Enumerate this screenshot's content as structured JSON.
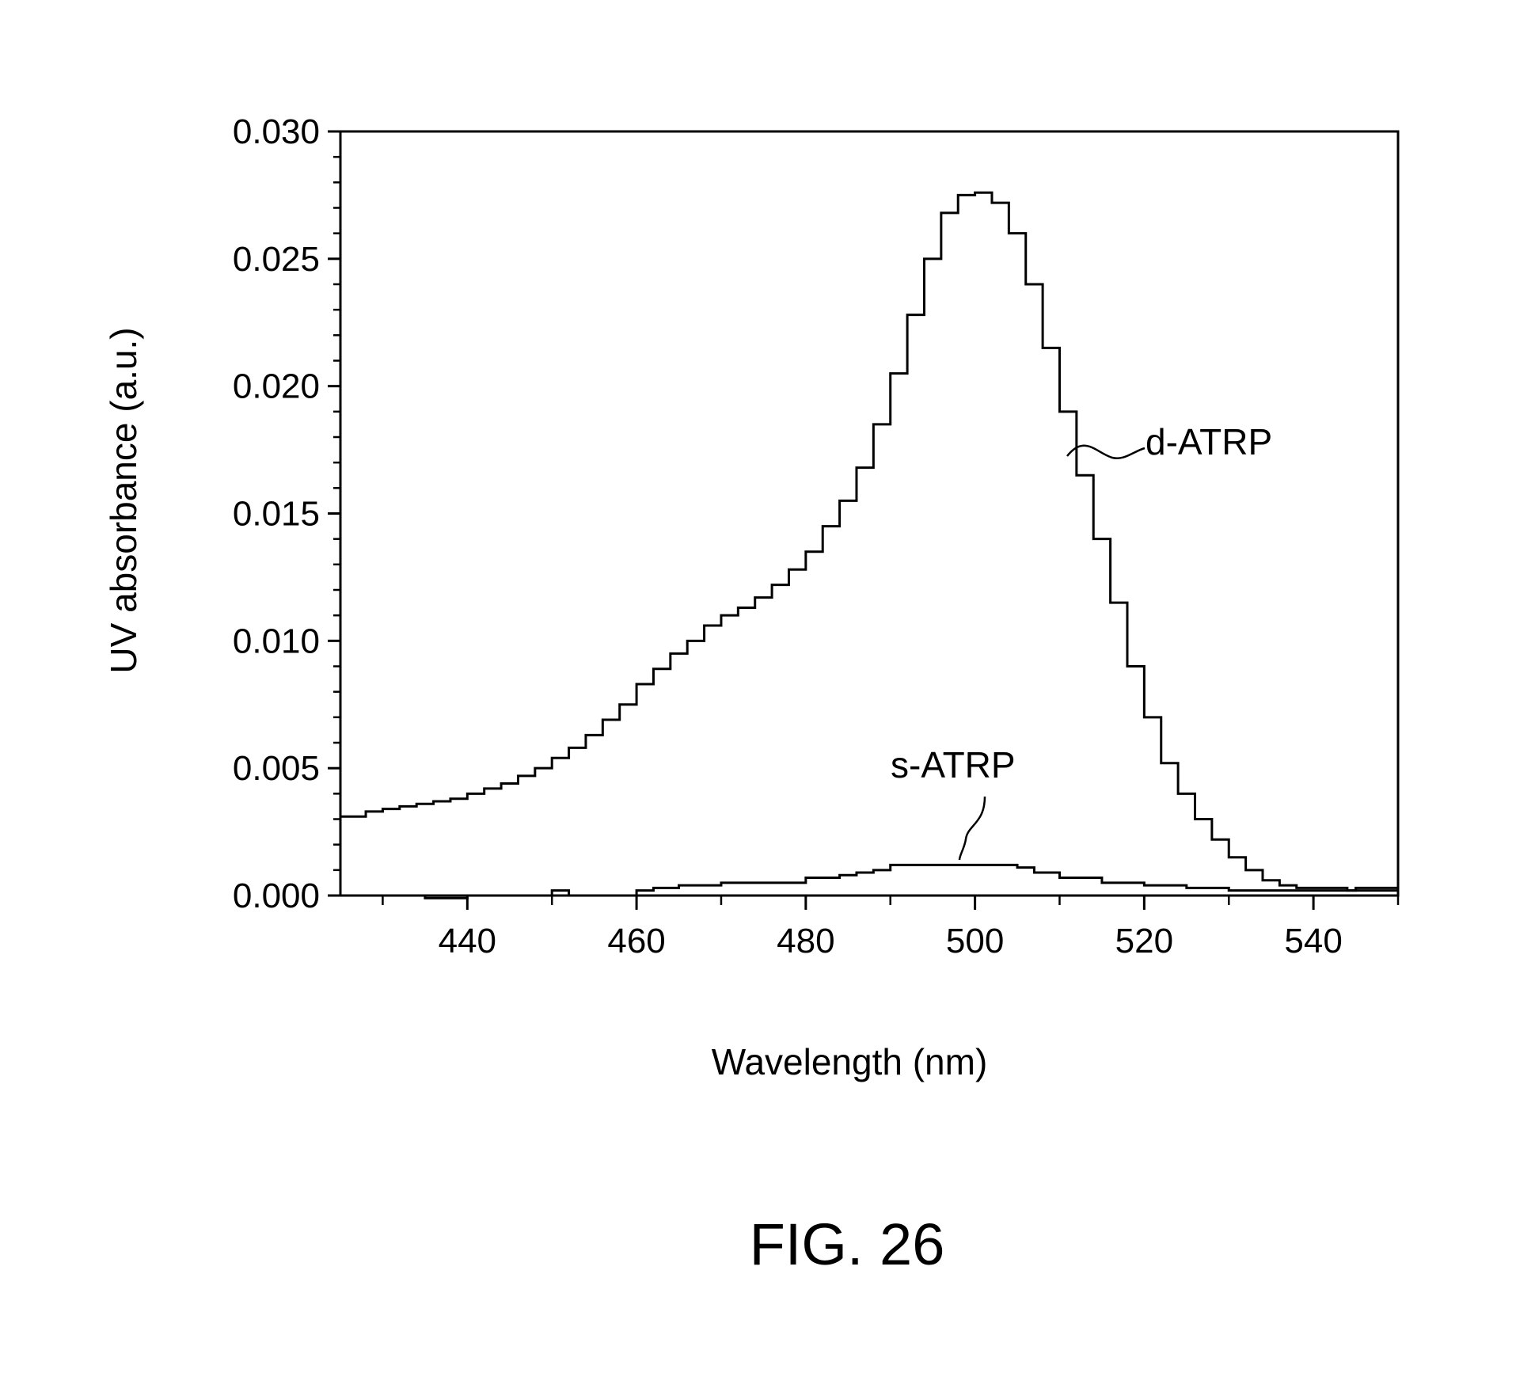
{
  "figure": {
    "caption": "FIG. 26"
  },
  "chart_data": {
    "type": "line",
    "title": "",
    "xlabel": "Wavelength (nm)",
    "ylabel": "UV absorbance (a.u.)",
    "xlim": [
      425,
      550
    ],
    "ylim": [
      0.0,
      0.03
    ],
    "x_ticks": [
      440,
      460,
      480,
      500,
      520,
      540
    ],
    "x_tick_labels": [
      "440",
      "460",
      "480",
      "500",
      "520",
      "540"
    ],
    "y_ticks": [
      0.0,
      0.005,
      0.01,
      0.015,
      0.02,
      0.025,
      0.03
    ],
    "y_tick_labels": [
      "0.000",
      "0.005",
      "0.010",
      "0.015",
      "0.020",
      "0.025",
      "0.030"
    ],
    "grid": false,
    "line_style": "step",
    "series": [
      {
        "name": "d-ATRP",
        "x": [
          425,
          428,
          430,
          432,
          434,
          436,
          438,
          440,
          442,
          444,
          446,
          448,
          450,
          452,
          454,
          456,
          458,
          460,
          462,
          464,
          466,
          468,
          470,
          472,
          474,
          476,
          478,
          480,
          482,
          484,
          486,
          488,
          490,
          492,
          494,
          496,
          498,
          500,
          502,
          504,
          506,
          508,
          510,
          512,
          514,
          516,
          518,
          520,
          522,
          524,
          526,
          528,
          530,
          532,
          534,
          536,
          538,
          540,
          542,
          544,
          546,
          548,
          550
        ],
        "y": [
          0.0031,
          0.0033,
          0.0034,
          0.0035,
          0.0036,
          0.0037,
          0.0038,
          0.004,
          0.0042,
          0.0044,
          0.0047,
          0.005,
          0.0054,
          0.0058,
          0.0063,
          0.0069,
          0.0075,
          0.0083,
          0.0089,
          0.0095,
          0.01,
          0.0106,
          0.011,
          0.0113,
          0.0117,
          0.0122,
          0.0128,
          0.0135,
          0.0145,
          0.0155,
          0.0168,
          0.0185,
          0.0205,
          0.0228,
          0.025,
          0.0268,
          0.0275,
          0.0276,
          0.0272,
          0.026,
          0.024,
          0.0215,
          0.019,
          0.0165,
          0.014,
          0.0115,
          0.009,
          0.007,
          0.0052,
          0.004,
          0.003,
          0.0022,
          0.0015,
          0.001,
          0.0006,
          0.0004,
          0.0003,
          0.0003,
          0.0003,
          0.0002,
          0.0002,
          0.0002,
          0.0002
        ]
      },
      {
        "name": "s-ATRP",
        "x": [
          431,
          435,
          440,
          445,
          450,
          452,
          455,
          460,
          462,
          465,
          468,
          470,
          475,
          480,
          484,
          486,
          488,
          490,
          495,
          500,
          505,
          507,
          510,
          515,
          520,
          525,
          530,
          535,
          540,
          545,
          550
        ],
        "y": [
          0.0,
          -0.0001,
          0.0,
          0.0,
          0.0002,
          0.0,
          0.0,
          0.0002,
          0.0003,
          0.0004,
          0.0004,
          0.0005,
          0.0005,
          0.0007,
          0.0008,
          0.0009,
          0.001,
          0.0012,
          0.0012,
          0.0012,
          0.0011,
          0.0009,
          0.0007,
          0.0005,
          0.0004,
          0.0003,
          0.0002,
          0.0002,
          0.0002,
          0.0003,
          0.0003
        ]
      }
    ]
  }
}
